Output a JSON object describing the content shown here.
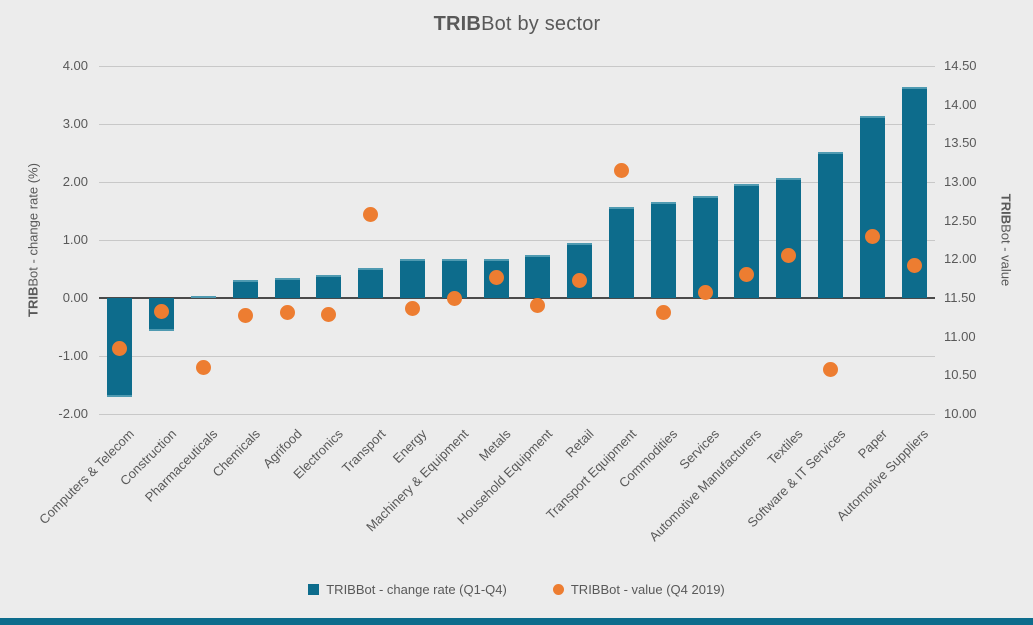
{
  "title": {
    "bold": "TRIB",
    "rest": "Bot by sector"
  },
  "colors": {
    "background": "#ececec",
    "bar": "#0d6c8c",
    "bar_cap": "#4f9ab1",
    "dot": "#ed7d31",
    "gridline": "#c8c8c8",
    "zero_line": "#4a4a4a",
    "text": "#595959",
    "bottom_strip": "#0d6c8c"
  },
  "chart_data": {
    "type": "bar",
    "title": "TRIBBot by sector",
    "grid": true,
    "legend_position": "bottom",
    "categories": [
      "Computers & Telecom",
      "Construction",
      "Pharmaceuticals",
      "Chemicals",
      "Agrifood",
      "Electronics",
      "Transport",
      "Energy",
      "Machinery & Equipment",
      "Metals",
      "Household Equipment",
      "Retail",
      "Transport Equipment",
      "Commodities",
      "Services",
      "Automotive Manufacturers",
      "Textiles",
      "Software & IT Services",
      "Paper",
      "Automotive Suppliers"
    ],
    "series": [
      {
        "name": "TRIBBot - change rate (Q1-Q4)",
        "type": "bar",
        "axis": "left",
        "color": "#0d6c8c",
        "values": [
          -1.7,
          -0.57,
          0.03,
          0.31,
          0.35,
          0.4,
          0.52,
          0.68,
          0.68,
          0.67,
          0.75,
          0.95,
          1.57,
          1.65,
          1.76,
          1.97,
          2.07,
          2.52,
          3.13,
          3.63
        ]
      },
      {
        "name": "TRIBBot - value (Q4 2019)",
        "type": "scatter",
        "axis": "right",
        "color": "#ed7d31",
        "values": [
          10.85,
          11.32,
          10.6,
          11.28,
          11.31,
          11.29,
          12.58,
          11.37,
          11.49,
          11.76,
          11.4,
          11.72,
          13.15,
          11.31,
          11.57,
          11.8,
          12.05,
          10.57,
          12.3,
          11.92
        ]
      }
    ],
    "left_axis": {
      "title_bold": "TRIB",
      "title_rest": "Bot - change rate (%)",
      "min": -2.0,
      "max": 4.0,
      "step": 1.0,
      "decimals": 2
    },
    "right_axis": {
      "title_bold": "TRIB",
      "title_rest": "Bot - value",
      "min": 10.0,
      "max": 14.5,
      "step": 0.5,
      "decimals": 2
    }
  }
}
